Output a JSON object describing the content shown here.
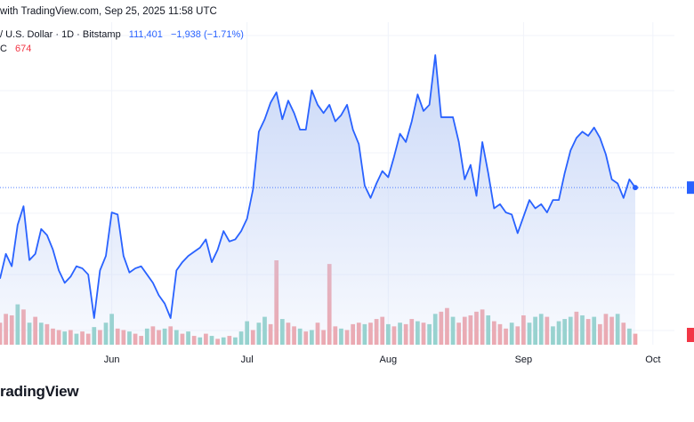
{
  "header": {
    "credit": "with TradingView.com, Sep 25, 2025 11:58 UTC",
    "symbol": "/ U.S. Dollar · 1D · Bitstamp",
    "price": "111,401",
    "change": "−1,938 (−1.71%)",
    "volume_label": "C",
    "volume_value": "674"
  },
  "brand": "radingView",
  "colors": {
    "line": "#2962ff",
    "area_top": "#c7d6f7",
    "volume_up": "#8fd1c8",
    "volume_down": "#f0a3a8",
    "price_marker": "#2962ff",
    "volume_marker": "#f23645"
  },
  "chart_data": {
    "type": "area",
    "series": [
      {
        "values": [
          -0.35,
          0.25,
          -0.05,
          0.95,
          1.4,
          0.1,
          0.25,
          0.85,
          0.7,
          0.35,
          -0.15,
          -0.45,
          -0.3,
          -0.05,
          -0.1,
          -0.25,
          -1.3,
          -0.15,
          0.2,
          1.25,
          1.2,
          0.2,
          -0.2,
          -0.1,
          -0.05,
          -0.25,
          -0.45,
          -0.75,
          -0.95,
          -1.3,
          -0.15,
          0.05,
          0.2,
          0.3,
          0.4,
          0.6,
          0.05,
          0.35,
          0.8,
          0.55,
          0.6,
          0.8,
          1.1,
          1.8,
          3.2,
          3.5,
          3.9,
          4.15,
          3.5,
          3.95,
          3.65,
          3.25,
          3.25,
          4.2,
          3.85,
          3.65,
          3.85,
          3.45,
          3.6,
          3.85,
          3.25,
          2.9,
          1.9,
          1.6,
          1.95,
          2.25,
          2.1,
          2.6,
          3.15,
          2.95,
          3.45,
          4.1,
          3.7,
          3.85,
          5.05,
          3.55,
          3.55,
          3.55,
          2.95,
          2.05,
          2.4,
          1.65,
          2.95,
          2.2,
          1.35,
          1.45,
          1.25,
          1.2,
          0.75,
          1.15,
          1.55,
          1.35,
          1.45,
          1.25,
          1.55,
          1.55,
          2.2,
          2.75,
          3.05,
          3.2,
          3.1,
          3.3,
          3.05,
          2.65,
          2.05,
          1.95,
          1.6,
          2.05,
          1.85
        ],
        "line_color": "#2962ff"
      }
    ],
    "volume": [
      {
        "v": 0.3,
        "up": false
      },
      {
        "v": 0.42,
        "up": false
      },
      {
        "v": 0.4,
        "up": false
      },
      {
        "v": 0.55,
        "up": true
      },
      {
        "v": 0.48,
        "up": false
      },
      {
        "v": 0.3,
        "up": true
      },
      {
        "v": 0.38,
        "up": false
      },
      {
        "v": 0.3,
        "up": true
      },
      {
        "v": 0.28,
        "up": false
      },
      {
        "v": 0.22,
        "up": false
      },
      {
        "v": 0.2,
        "up": false
      },
      {
        "v": 0.18,
        "up": true
      },
      {
        "v": 0.2,
        "up": false
      },
      {
        "v": 0.15,
        "up": true
      },
      {
        "v": 0.18,
        "up": false
      },
      {
        "v": 0.15,
        "up": false
      },
      {
        "v": 0.24,
        "up": true
      },
      {
        "v": 0.2,
        "up": false
      },
      {
        "v": 0.3,
        "up": true
      },
      {
        "v": 0.42,
        "up": true
      },
      {
        "v": 0.22,
        "up": false
      },
      {
        "v": 0.2,
        "up": false
      },
      {
        "v": 0.18,
        "up": true
      },
      {
        "v": 0.15,
        "up": false
      },
      {
        "v": 0.12,
        "up": false
      },
      {
        "v": 0.22,
        "up": true
      },
      {
        "v": 0.25,
        "up": false
      },
      {
        "v": 0.2,
        "up": false
      },
      {
        "v": 0.22,
        "up": true
      },
      {
        "v": 0.25,
        "up": false
      },
      {
        "v": 0.2,
        "up": true
      },
      {
        "v": 0.15,
        "up": false
      },
      {
        "v": 0.18,
        "up": true
      },
      {
        "v": 0.12,
        "up": false
      },
      {
        "v": 0.1,
        "up": true
      },
      {
        "v": 0.15,
        "up": false
      },
      {
        "v": 0.12,
        "up": true
      },
      {
        "v": 0.08,
        "up": false
      },
      {
        "v": 0.1,
        "up": true
      },
      {
        "v": 0.12,
        "up": false
      },
      {
        "v": 0.1,
        "up": true
      },
      {
        "v": 0.18,
        "up": true
      },
      {
        "v": 0.32,
        "up": true
      },
      {
        "v": 0.2,
        "up": false
      },
      {
        "v": 0.3,
        "up": true
      },
      {
        "v": 0.38,
        "up": true
      },
      {
        "v": 0.28,
        "up": false
      },
      {
        "v": 1.15,
        "up": false
      },
      {
        "v": 0.35,
        "up": true
      },
      {
        "v": 0.3,
        "up": false
      },
      {
        "v": 0.25,
        "up": false
      },
      {
        "v": 0.22,
        "up": true
      },
      {
        "v": 0.18,
        "up": false
      },
      {
        "v": 0.2,
        "up": true
      },
      {
        "v": 0.3,
        "up": false
      },
      {
        "v": 0.2,
        "up": false
      },
      {
        "v": 1.1,
        "up": false
      },
      {
        "v": 0.25,
        "up": false
      },
      {
        "v": 0.22,
        "up": true
      },
      {
        "v": 0.2,
        "up": false
      },
      {
        "v": 0.28,
        "up": false
      },
      {
        "v": 0.3,
        "up": false
      },
      {
        "v": 0.28,
        "up": true
      },
      {
        "v": 0.3,
        "up": false
      },
      {
        "v": 0.35,
        "up": false
      },
      {
        "v": 0.38,
        "up": false
      },
      {
        "v": 0.28,
        "up": true
      },
      {
        "v": 0.25,
        "up": false
      },
      {
        "v": 0.3,
        "up": true
      },
      {
        "v": 0.28,
        "up": false
      },
      {
        "v": 0.35,
        "up": false
      },
      {
        "v": 0.32,
        "up": true
      },
      {
        "v": 0.3,
        "up": false
      },
      {
        "v": 0.28,
        "up": true
      },
      {
        "v": 0.42,
        "up": true
      },
      {
        "v": 0.45,
        "up": false
      },
      {
        "v": 0.5,
        "up": false
      },
      {
        "v": 0.38,
        "up": true
      },
      {
        "v": 0.3,
        "up": false
      },
      {
        "v": 0.38,
        "up": false
      },
      {
        "v": 0.4,
        "up": false
      },
      {
        "v": 0.45,
        "up": false
      },
      {
        "v": 0.48,
        "up": false
      },
      {
        "v": 0.4,
        "up": true
      },
      {
        "v": 0.32,
        "up": false
      },
      {
        "v": 0.28,
        "up": false
      },
      {
        "v": 0.22,
        "up": false
      },
      {
        "v": 0.3,
        "up": true
      },
      {
        "v": 0.25,
        "up": false
      },
      {
        "v": 0.4,
        "up": false
      },
      {
        "v": 0.3,
        "up": true
      },
      {
        "v": 0.38,
        "up": true
      },
      {
        "v": 0.42,
        "up": true
      },
      {
        "v": 0.38,
        "up": false
      },
      {
        "v": 0.25,
        "up": true
      },
      {
        "v": 0.32,
        "up": true
      },
      {
        "v": 0.35,
        "up": true
      },
      {
        "v": 0.38,
        "up": true
      },
      {
        "v": 0.45,
        "up": false
      },
      {
        "v": 0.4,
        "up": true
      },
      {
        "v": 0.35,
        "up": false
      },
      {
        "v": 0.38,
        "up": true
      },
      {
        "v": 0.28,
        "up": false
      },
      {
        "v": 0.42,
        "up": false
      },
      {
        "v": 0.38,
        "up": false
      },
      {
        "v": 0.42,
        "up": true
      },
      {
        "v": 0.3,
        "up": false
      },
      {
        "v": 0.22,
        "up": true
      },
      {
        "v": 0.15,
        "up": false
      }
    ],
    "x_labels": [
      "Jun",
      "Jul",
      "Aug",
      "Sep",
      "Oct"
    ],
    "x_label_index": [
      19,
      42,
      66,
      89,
      111
    ],
    "last_price_dot": true,
    "grid": "horizontal",
    "title": "",
    "xlabel": "",
    "ylabel": ""
  }
}
